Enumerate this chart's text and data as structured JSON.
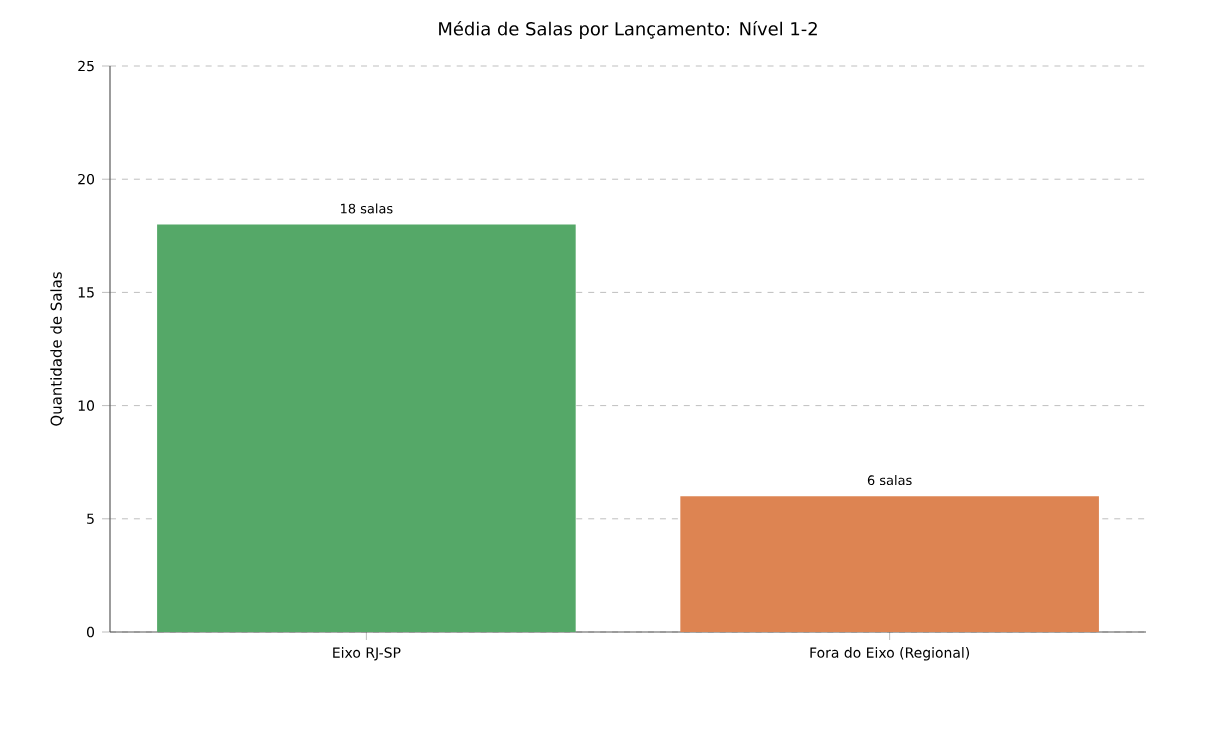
{
  "chart_data": {
    "type": "bar",
    "title": "Média de Salas por Lançamento: Nível 1-2",
    "ylabel": "Quantidade de Salas",
    "categories": [
      "Eixo RJ-SP",
      "Fora do Eixo (Regional)"
    ],
    "values": [
      18,
      6
    ],
    "colors": [
      "#55a868",
      "#dd8452"
    ],
    "value_labels": [
      "18 salas",
      "6 salas"
    ],
    "ylim": [
      0,
      25
    ],
    "yticks": [
      0,
      5,
      10,
      15,
      20,
      25
    ],
    "grid": "y"
  }
}
